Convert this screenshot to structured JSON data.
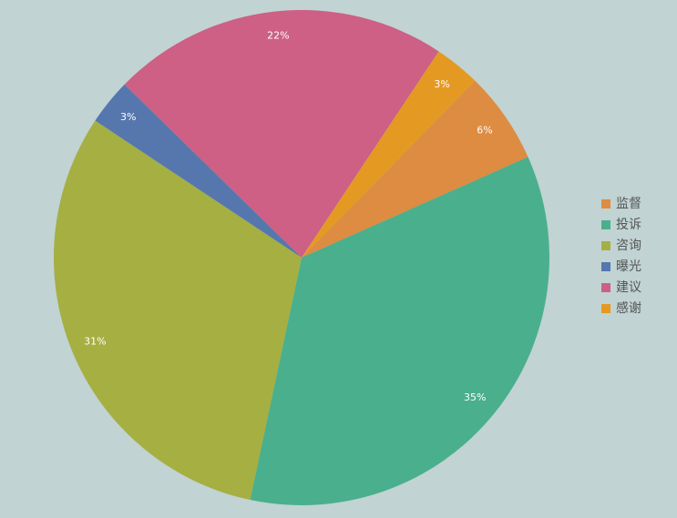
{
  "chart_data": {
    "type": "pie",
    "categories": [
      "监督",
      "投诉",
      "咨询",
      "曝光",
      "建议",
      "感谢"
    ],
    "values": [
      6,
      35,
      31,
      3,
      22,
      3
    ],
    "value_labels": [
      "6%",
      "35%",
      "31%",
      "3%",
      "22%",
      "3%"
    ],
    "colors": [
      "#dd8c41",
      "#4aaf8c",
      "#a6af42",
      "#5677ae",
      "#cd6084",
      "#e49a22"
    ],
    "legend": "right"
  }
}
